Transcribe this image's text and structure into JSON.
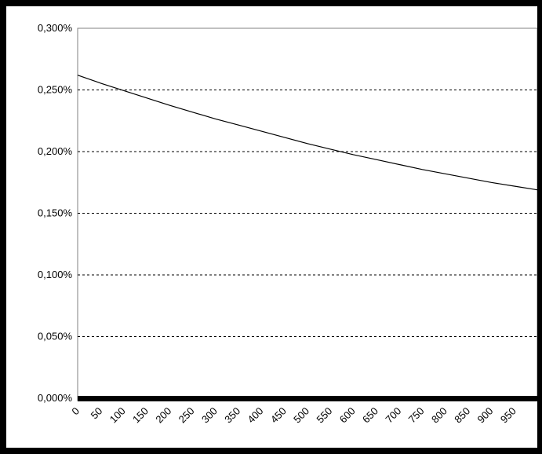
{
  "chart_data": {
    "type": "line",
    "title": "",
    "xlabel": "",
    "ylabel": "",
    "x_ticks": [
      "0",
      "50",
      "100",
      "150",
      "200",
      "250",
      "300",
      "350",
      "400",
      "450",
      "500",
      "550",
      "600",
      "650",
      "700",
      "750",
      "800",
      "850",
      "900",
      "950"
    ],
    "y_ticks": [
      "0,000%",
      "0,050%",
      "0,100%",
      "0,150%",
      "0,200%",
      "0,250%",
      "0,300%"
    ],
    "xlim": [
      0,
      1000
    ],
    "ylim": [
      0,
      0.3
    ],
    "grid": "horizontal dashed",
    "series": [
      {
        "color": "#000000",
        "x": [
          0,
          50,
          100,
          150,
          200,
          250,
          300,
          350,
          400,
          450,
          500,
          550,
          600,
          650,
          700,
          750,
          800,
          850,
          900,
          950,
          1000
        ],
        "y": [
          0.262,
          0.2555,
          0.2495,
          0.2435,
          0.2375,
          0.232,
          0.2265,
          0.2215,
          0.2165,
          0.2115,
          0.2065,
          0.202,
          0.1975,
          0.1935,
          0.1895,
          0.1855,
          0.182,
          0.1785,
          0.175,
          0.172,
          0.169
        ]
      }
    ],
    "baseline_color": "#000000"
  }
}
